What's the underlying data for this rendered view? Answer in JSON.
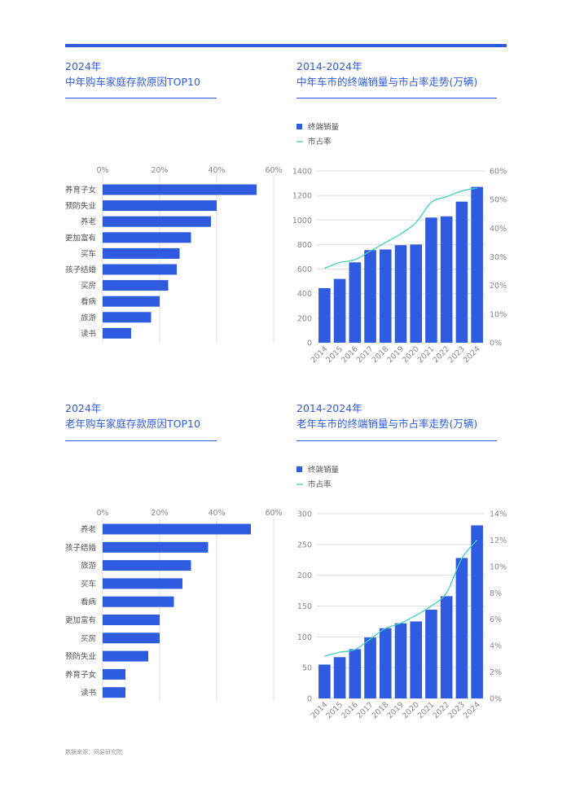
{
  "colors": {
    "accent": "#2f5be0",
    "bar": "#2f5be0",
    "line": "#3fd0c4",
    "grid": "#dddddd"
  },
  "panels": {
    "tl": {
      "line1": "2024年",
      "line2": "中年购车家庭存款原因TOP10"
    },
    "tr": {
      "line1": "2014-2024年",
      "line2": "中年车市的终端销量与市占率走势(万辆)"
    },
    "bl": {
      "line1": "2024年",
      "line2": "老年购车家庭存款原因TOP10"
    },
    "br": {
      "line1": "2014-2024年",
      "line2": "老年车市的终端销量与市占率走势(万辆)"
    }
  },
  "source": "数据来源：网易研究院",
  "chart_data": [
    {
      "id": "middle-reasons",
      "type": "bar",
      "orientation": "horizontal",
      "categories": [
        "养育子女",
        "预防失业",
        "养老",
        "更加富有",
        "买车",
        "孩子结婚",
        "买房",
        "看病",
        "旅游",
        "读书"
      ],
      "values": [
        54,
        40,
        38,
        31,
        27,
        26,
        23,
        20,
        17,
        10
      ],
      "x_ticks": [
        "0%",
        "20%",
        "40%",
        "60%"
      ],
      "xlim": [
        0,
        60
      ],
      "grid": true
    },
    {
      "id": "middle-sales",
      "type": "bar+line",
      "categories": [
        "2014",
        "2015",
        "2016",
        "2017",
        "2018",
        "2019",
        "2020",
        "2021",
        "2022",
        "2023",
        "2024"
      ],
      "series": [
        {
          "name": "终端销量",
          "type": "bar",
          "axis": "left",
          "values": [
            445,
            520,
            655,
            755,
            760,
            795,
            800,
            1020,
            1030,
            1150,
            1270
          ]
        },
        {
          "name": "市占率",
          "type": "line",
          "axis": "right",
          "values": [
            26,
            28,
            29,
            32,
            35,
            38,
            42,
            49,
            51,
            53,
            54
          ]
        }
      ],
      "left_ticks": [
        "0",
        "200",
        "400",
        "600",
        "800",
        "1000",
        "1200",
        "1400"
      ],
      "left_lim": [
        0,
        1400
      ],
      "right_ticks": [
        "0%",
        "10%",
        "20%",
        "30%",
        "40%",
        "50%",
        "60%"
      ],
      "right_lim": [
        0,
        60
      ],
      "grid": true
    },
    {
      "id": "elder-reasons",
      "type": "bar",
      "orientation": "horizontal",
      "categories": [
        "养老",
        "孩子结婚",
        "旅游",
        "买车",
        "看病",
        "更加富有",
        "买房",
        "预防失业",
        "养育子女",
        "读书"
      ],
      "values": [
        52,
        37,
        31,
        28,
        25,
        20,
        20,
        16,
        8,
        8
      ],
      "x_ticks": [
        "0%",
        "20%",
        "40%",
        "60%"
      ],
      "xlim": [
        0,
        60
      ],
      "grid": true
    },
    {
      "id": "elder-sales",
      "type": "bar+line",
      "categories": [
        "2014",
        "2015",
        "2016",
        "2017",
        "2018",
        "2019",
        "2020",
        "2021",
        "2022",
        "2023",
        "2024"
      ],
      "series": [
        {
          "name": "终端销量",
          "type": "bar",
          "axis": "left",
          "values": [
            55,
            67,
            80,
            99,
            114,
            122,
            125,
            144,
            166,
            228,
            281
          ]
        },
        {
          "name": "市占率",
          "type": "line",
          "axis": "right",
          "values": [
            3.2,
            3.5,
            3.7,
            4.5,
            5.3,
            5.7,
            6.3,
            7.0,
            8.0,
            10.6,
            12.0
          ]
        }
      ],
      "left_ticks": [
        "0",
        "50",
        "100",
        "150",
        "200",
        "250",
        "300"
      ],
      "left_lim": [
        0,
        300
      ],
      "right_ticks": [
        "0%",
        "2%",
        "4%",
        "6%",
        "8%",
        "10%",
        "12%",
        "14%"
      ],
      "right_lim": [
        0,
        14
      ],
      "grid": true
    }
  ]
}
